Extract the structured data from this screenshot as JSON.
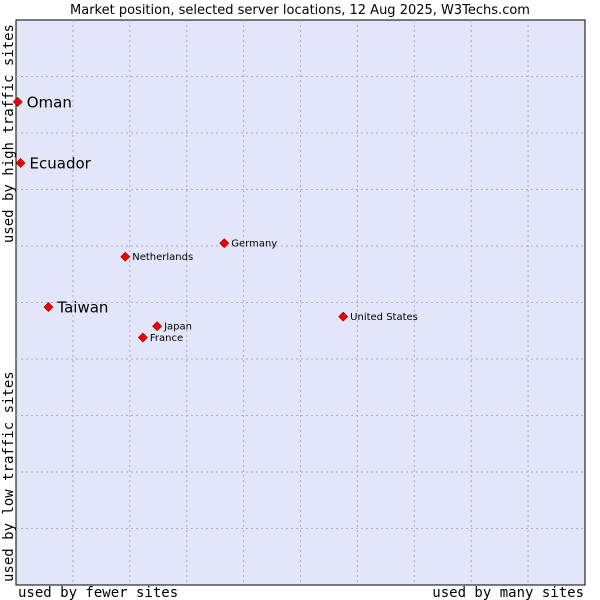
{
  "chart_data": {
    "type": "scatter",
    "title": "Market position, selected server locations, 12 Aug 2025, W3Techs.com",
    "xlabel_left": "used by fewer sites",
    "xlabel_right": "used by many sites",
    "ylabel_bottom": "used by low traffic sites",
    "ylabel_top": "used by high traffic sites",
    "grid": true,
    "plot_background": "#e3e5f8",
    "point_color": "#ee0000",
    "points": [
      {
        "name": "Oman",
        "x": 0.3,
        "y": 85.5,
        "emphasis": true
      },
      {
        "name": "Ecuador",
        "x": 0.8,
        "y": 74.7,
        "emphasis": true
      },
      {
        "name": "Germany",
        "x": 36.6,
        "y": 60.5,
        "emphasis": false
      },
      {
        "name": "Netherlands",
        "x": 19.2,
        "y": 58.1,
        "emphasis": false
      },
      {
        "name": "Taiwan",
        "x": 5.7,
        "y": 49.2,
        "emphasis": true
      },
      {
        "name": "United States",
        "x": 57.5,
        "y": 47.5,
        "emphasis": false
      },
      {
        "name": "Japan",
        "x": 24.8,
        "y": 45.8,
        "emphasis": false
      },
      {
        "name": "France",
        "x": 22.3,
        "y": 43.8,
        "emphasis": false
      }
    ]
  }
}
